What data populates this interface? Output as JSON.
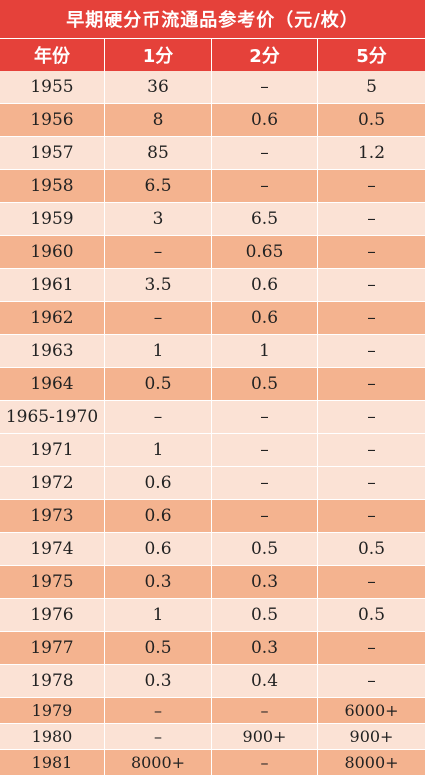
{
  "title": "早期硬分币流通品参考价（元/枚）",
  "headers": [
    "年份",
    "1分",
    "2分",
    "5分"
  ],
  "rows": [
    {
      "year": "1955",
      "fen1": "36",
      "fen2": "–",
      "fen5": "5"
    },
    {
      "year": "1956",
      "fen1": "8",
      "fen2": "0.6",
      "fen5": "0.5"
    },
    {
      "year": "1957",
      "fen1": "85",
      "fen2": "–",
      "fen5": "1.2"
    },
    {
      "year": "1958",
      "fen1": "6.5",
      "fen2": "–",
      "fen5": "–"
    },
    {
      "year": "1959",
      "fen1": "3",
      "fen2": "6.5",
      "fen5": "–"
    },
    {
      "year": "1960",
      "fen1": "–",
      "fen2": "0.65",
      "fen5": "–"
    },
    {
      "year": "1961",
      "fen1": "3.5",
      "fen2": "0.6",
      "fen5": "–"
    },
    {
      "year": "1962",
      "fen1": "–",
      "fen2": "0.6",
      "fen5": "–"
    },
    {
      "year": "1963",
      "fen1": "1",
      "fen2": "1",
      "fen5": "–"
    },
    {
      "year": "1964",
      "fen1": "0.5",
      "fen2": "0.5",
      "fen5": "–"
    },
    {
      "year": "1965-1970",
      "fen1": "–",
      "fen2": "–",
      "fen5": "–"
    },
    {
      "year": "1971",
      "fen1": "1",
      "fen2": "–",
      "fen5": "–"
    },
    {
      "year": "1972",
      "fen1": "0.6",
      "fen2": "–",
      "fen5": "–"
    },
    {
      "year": "1973",
      "fen1": "0.6",
      "fen2": "–",
      "fen5": "–"
    },
    {
      "year": "1974",
      "fen1": "0.6",
      "fen2": "0.5",
      "fen5": "0.5"
    },
    {
      "year": "1975",
      "fen1": "0.3",
      "fen2": "0.3",
      "fen5": "–"
    },
    {
      "year": "1976",
      "fen1": "1",
      "fen2": "0.5",
      "fen5": "0.5"
    },
    {
      "year": "1977",
      "fen1": "0.5",
      "fen2": "0.3",
      "fen5": "–"
    },
    {
      "year": "1978",
      "fen1": "0.3",
      "fen2": "0.4",
      "fen5": "–"
    },
    {
      "year": "1979",
      "fen1": "–",
      "fen2": "–",
      "fen5": "6000+"
    },
    {
      "year": "1980",
      "fen1": "–",
      "fen2": "900+",
      "fen5": "900+"
    },
    {
      "year": "1981",
      "fen1": "8000+",
      "fen2": "–",
      "fen5": "8000+"
    }
  ],
  "colors": {
    "header": "#e5413a",
    "row_light": "#fbe2d5",
    "row_dark": "#f4b38f"
  }
}
